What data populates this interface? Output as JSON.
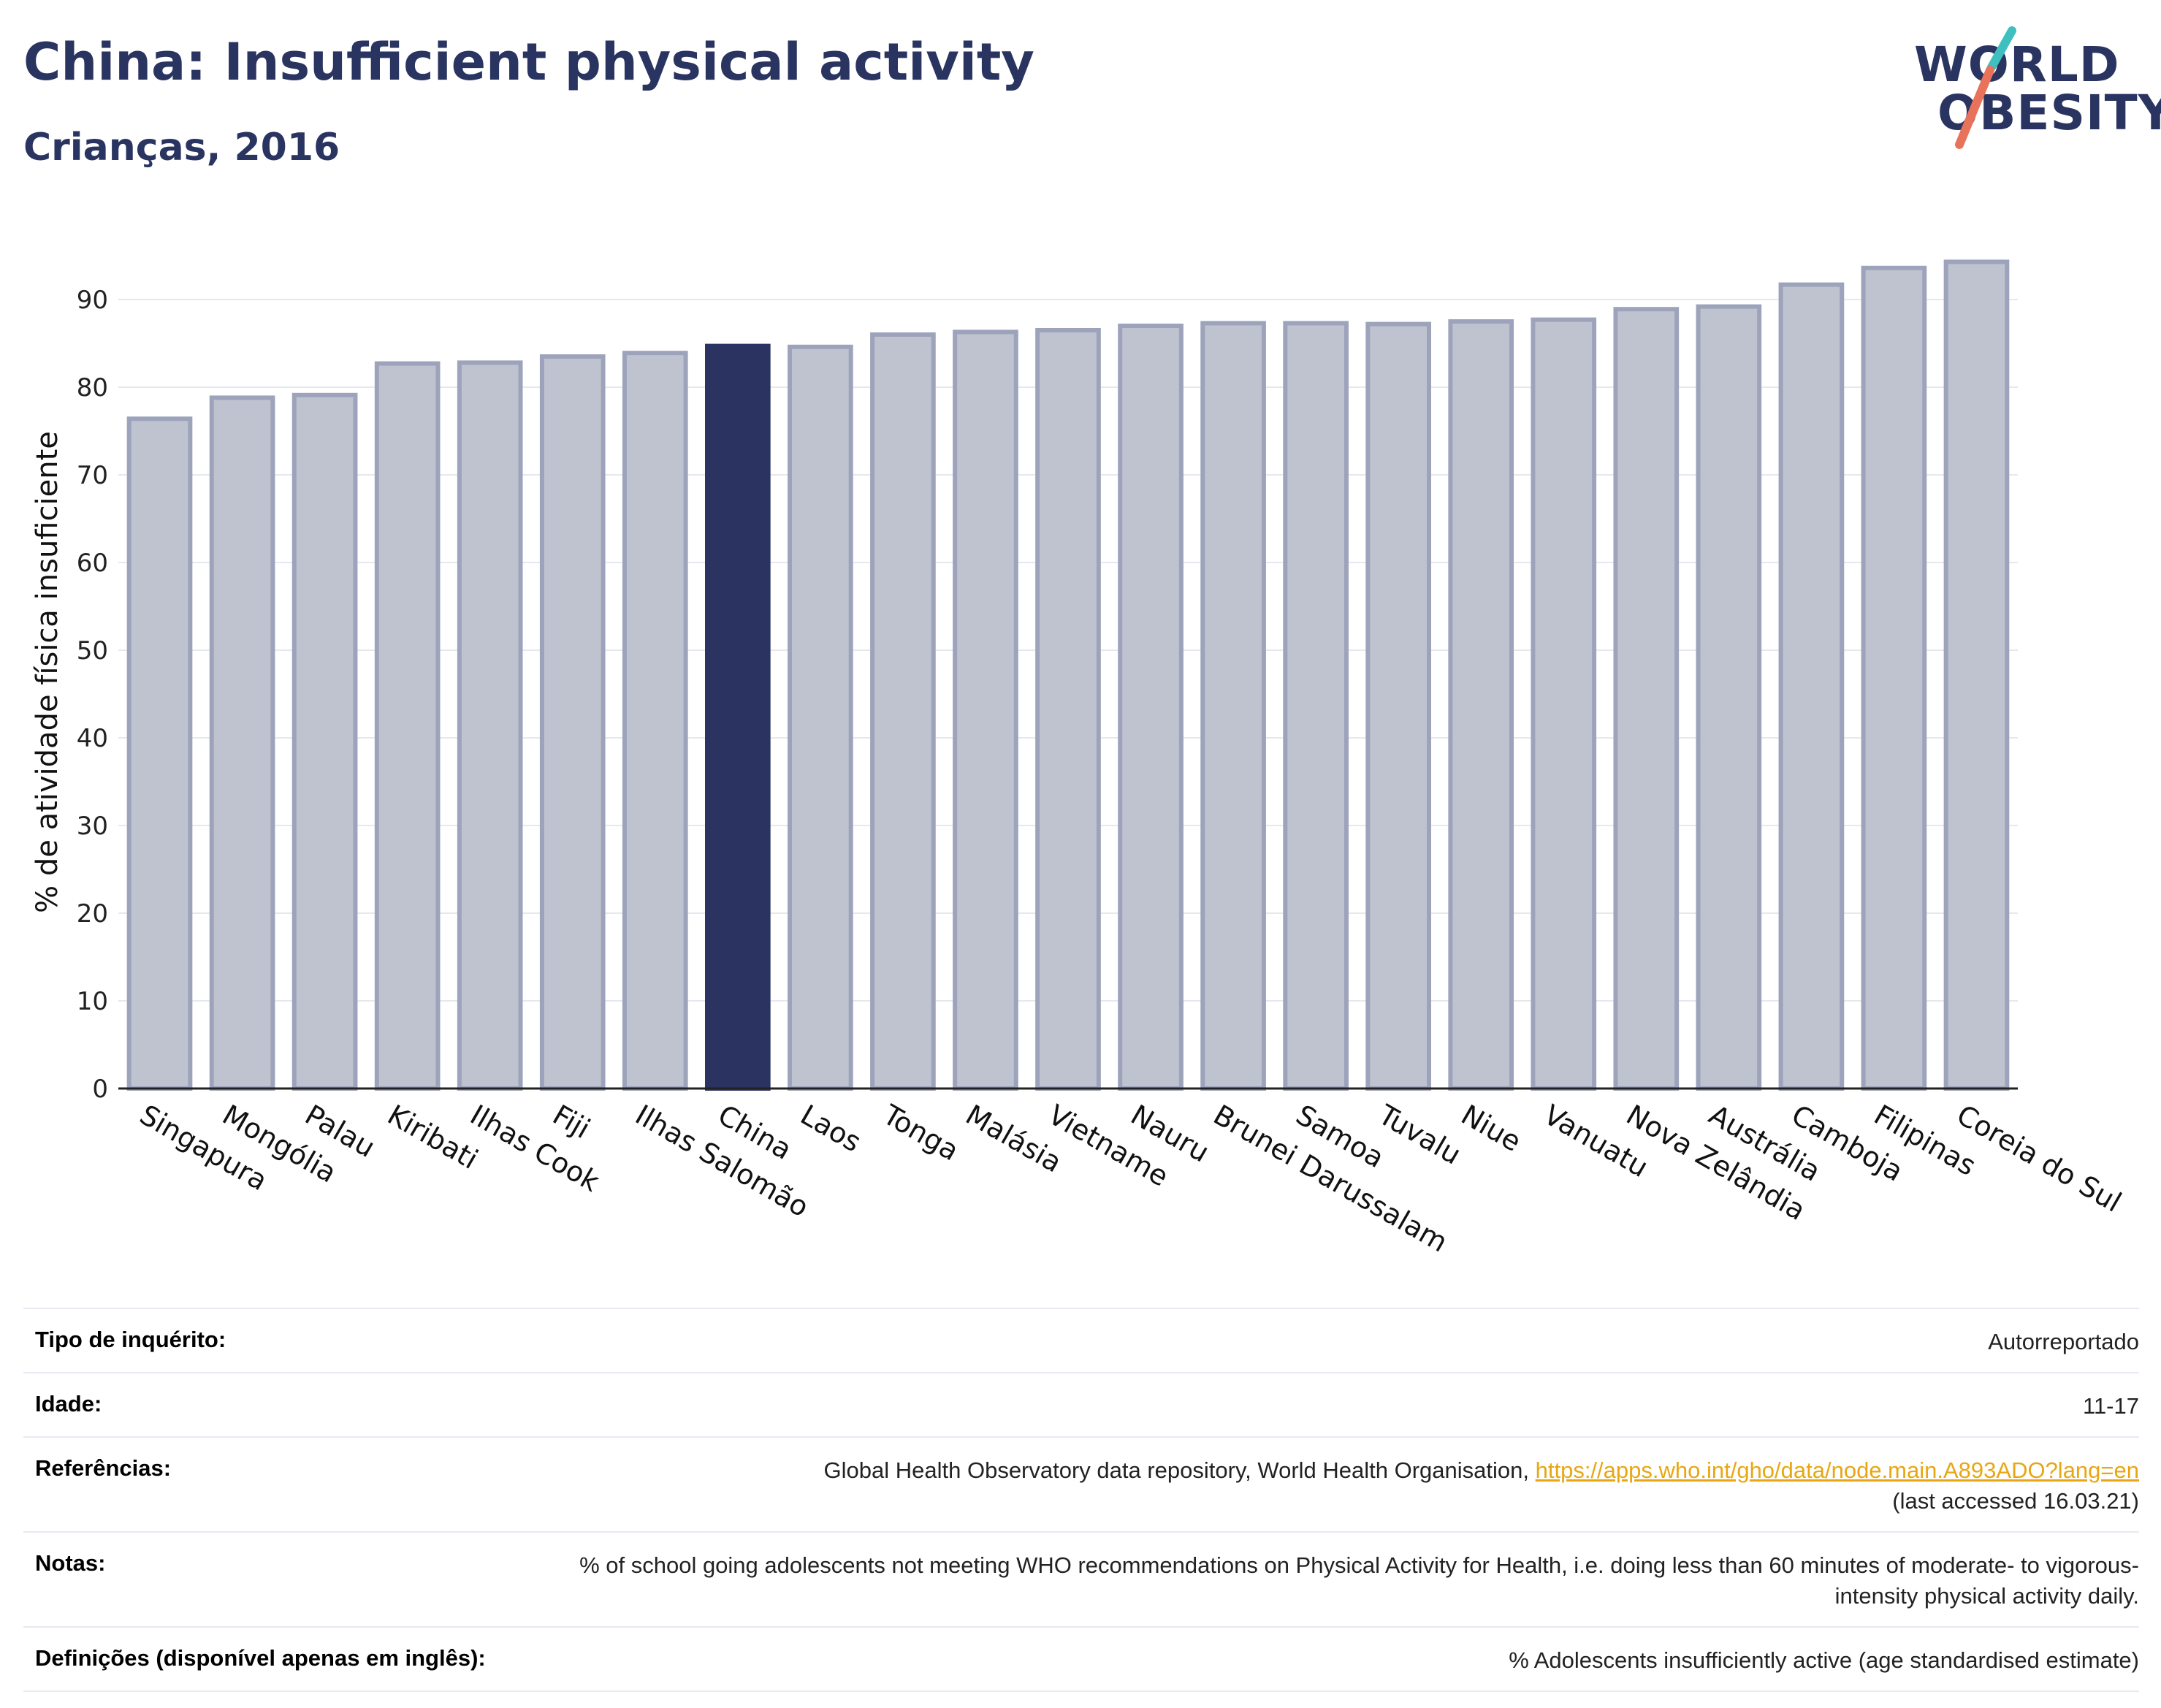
{
  "header": {
    "title": "China: Insufficient physical activity",
    "subtitle": "Crianças, 2016"
  },
  "logo": {
    "line1": "WORLD",
    "line2": "OBESITY",
    "colors": [
      "#2a3460",
      "#3fbfbf",
      "#e8735a"
    ]
  },
  "colors": {
    "highlight": "#2b3461",
    "bar_fill": "#bfc3cf",
    "bar_stroke": "#9da3bb",
    "grid": "#e6e8ef"
  },
  "chart_data": {
    "type": "bar",
    "title": "",
    "xlabel": "",
    "ylabel": "% de atividade física insuficiente",
    "ylim": [
      0,
      95
    ],
    "yticks": [
      0,
      10,
      20,
      30,
      40,
      50,
      60,
      70,
      80,
      90
    ],
    "grid": true,
    "highlight": "China",
    "categories": [
      "Singapura",
      "Mongólia",
      "Palau",
      "Kiribati",
      "Ilhas Cook",
      "Fiji",
      "Ilhas Salomão",
      "China",
      "Laos",
      "Tonga",
      "Malásia",
      "Vietname",
      "Nauru",
      "Brunei Darussalam",
      "Samoa",
      "Tuvalu",
      "Niue",
      "Vanuatu",
      "Nova Zelândia",
      "Austrália",
      "Camboja",
      "Filipinas",
      "Coreia do Sul"
    ],
    "values": [
      76.4,
      78.8,
      79.1,
      82.7,
      82.8,
      83.5,
      83.9,
      84.7,
      84.6,
      86.0,
      86.3,
      86.5,
      87.0,
      87.3,
      87.3,
      87.2,
      87.5,
      87.7,
      88.9,
      89.2,
      91.7,
      93.6,
      94.3
    ]
  },
  "info": {
    "survey_label": "Tipo de inquérito:",
    "survey_value": "Autorreportado",
    "age_label": "Idade:",
    "age_value": "11-17",
    "refs_label": "Referências:",
    "refs_text": "Global Health Observatory data repository, World Health Organisation, ",
    "refs_link": "https://apps.who.int/gho/data/node.main.A893ADO?lang=en",
    "refs_note": "(last accessed 16.03.21)",
    "notes_label": "Notas:",
    "notes_value": "% of school going adolescents not meeting WHO recommendations on Physical Activity for Health, i.e. doing less than 60 minutes of moderate- to vigorous-intensity physical activity daily.",
    "defs_label": "Definições (disponível apenas em inglês):",
    "defs_value": "% Adolescents insufficiently active (age standardised estimate)"
  }
}
